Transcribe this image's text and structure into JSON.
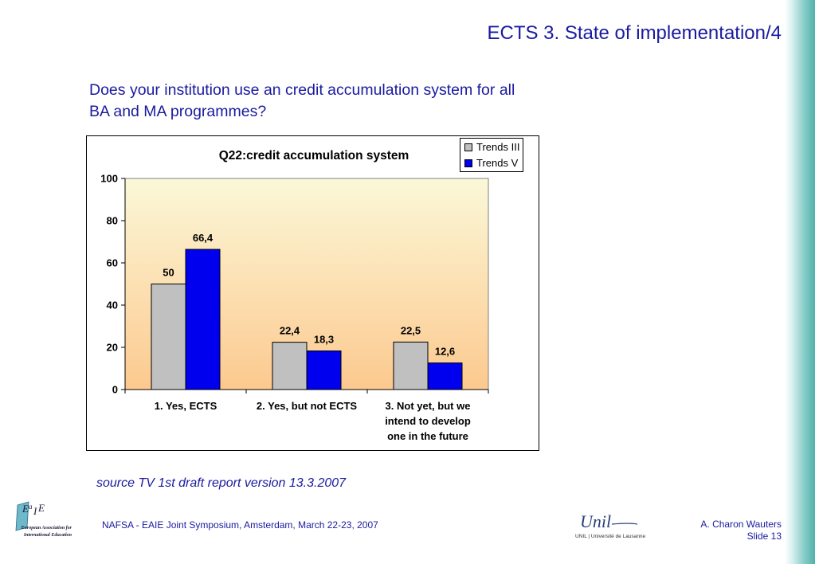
{
  "slide": {
    "title": "ECTS 3. State of implementation/4",
    "question": "Does your institution use an credit accumulation system for all BA and MA programmes?",
    "source": "source TV 1st draft report version 13.3.2007",
    "footer_center": "NAFSA - EAIE Joint Symposium, Amsterdam, March 22-23, 2007",
    "author": "A. Charon Wauters",
    "slide_number": "Slide 13"
  },
  "logos": {
    "eaie_mark": "EaIE",
    "eaie_name": "European Association for International Education",
    "unil_mark": "Unil",
    "unil_sub": "UNIL | Université de Lausanne"
  },
  "colors": {
    "title_text": "#1a1aa0",
    "series_trends3": "#c0c0c0",
    "series_trends5": "#0000ee"
  },
  "chart_data": {
    "type": "bar",
    "title": "Q22:credit accumulation system",
    "xlabel": "",
    "ylabel": "",
    "ylim": [
      0,
      100
    ],
    "yticks": [
      0,
      20,
      40,
      60,
      80,
      100
    ],
    "categories": [
      [
        "1. Yes, ECTS"
      ],
      [
        "2. Yes, but not ECTS"
      ],
      [
        "3. Not yet, but we",
        "intend to develop",
        "one in the future"
      ]
    ],
    "series": [
      {
        "name": "Trends III",
        "values": [
          50,
          22.4,
          22.5
        ],
        "labels": [
          "50",
          "22,4",
          "22,5"
        ],
        "color": "#c0c0c0"
      },
      {
        "name": "Trends V",
        "values": [
          66.4,
          18.3,
          12.6
        ],
        "labels": [
          "66,4",
          "18,3",
          "12,6"
        ],
        "color": "#0000ee"
      }
    ],
    "legend_position": "top-right",
    "grid": false,
    "plot_background": "gradient light-yellow to peach"
  }
}
